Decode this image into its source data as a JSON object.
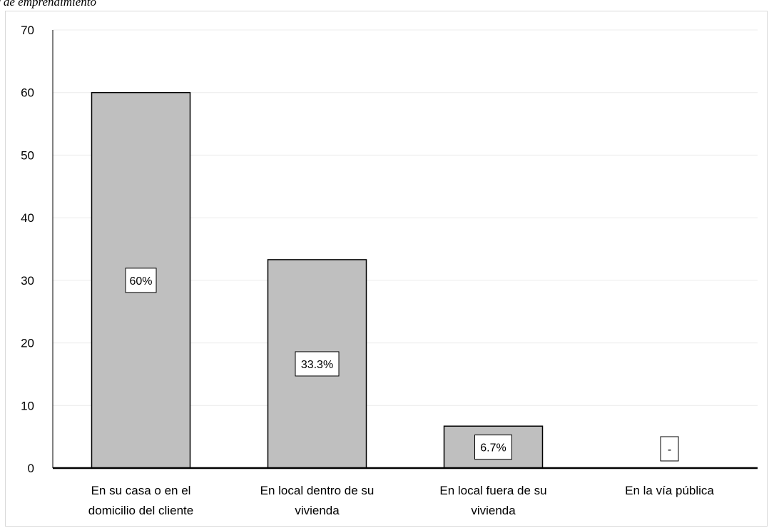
{
  "caption": "r de emprendimiento",
  "chart_data": {
    "type": "bar",
    "title": "",
    "xlabel": "",
    "ylabel": "",
    "ylim": [
      0,
      70
    ],
    "yticks": [
      0,
      10,
      20,
      30,
      40,
      50,
      60,
      70
    ],
    "grid": true,
    "categories": [
      [
        "En su casa o en el",
        "domicilio del cliente"
      ],
      [
        "En local dentro de su",
        "vivienda"
      ],
      [
        "En local fuera de su",
        "vivienda"
      ],
      [
        "En la vía pública"
      ]
    ],
    "values": [
      60,
      33.3,
      6.7,
      0
    ],
    "data_labels": [
      "60%",
      "33.3%",
      "6.7%",
      "-"
    ],
    "colors": {
      "bar_fill": "#bfbfbf",
      "bar_stroke": "#000000",
      "grid": "#ececec",
      "axis": "#000000"
    }
  }
}
